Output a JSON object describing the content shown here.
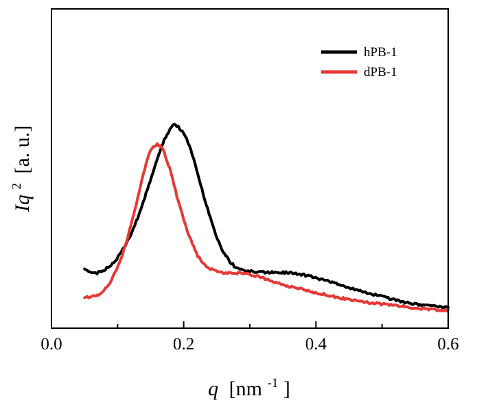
{
  "chart_data": {
    "type": "line",
    "title": "",
    "xlabel": {
      "main": "q",
      "unit_prefix": "[nm",
      "exponent": "-1",
      "unit_suffix": "]"
    },
    "ylabel": {
      "main": "Iq",
      "exponent": "2",
      "unit": "[a. u.]"
    },
    "xlim": [
      0.0,
      0.6
    ],
    "ylim": [
      0,
      1
    ],
    "x_ticks": [
      0.0,
      0.1,
      0.2,
      0.3,
      0.4,
      0.5,
      0.6
    ],
    "x_tick_labels": [
      "0.0",
      "0.2",
      "0.4",
      "0.6"
    ],
    "x_tick_label_values": [
      0.0,
      0.2,
      0.4,
      0.6
    ],
    "y_ticks_shown": false,
    "legend_position": "top-right",
    "series": [
      {
        "name": "hPB-1",
        "color": "#000000",
        "points": [
          [
            0.05,
            0.175
          ],
          [
            0.06,
            0.158
          ],
          [
            0.07,
            0.158
          ],
          [
            0.08,
            0.168
          ],
          [
            0.09,
            0.185
          ],
          [
            0.1,
            0.21
          ],
          [
            0.11,
            0.245
          ],
          [
            0.12,
            0.29
          ],
          [
            0.13,
            0.345
          ],
          [
            0.14,
            0.41
          ],
          [
            0.15,
            0.48
          ],
          [
            0.16,
            0.55
          ],
          [
            0.17,
            0.615
          ],
          [
            0.18,
            0.655
          ],
          [
            0.185,
            0.668
          ],
          [
            0.19,
            0.665
          ],
          [
            0.2,
            0.64
          ],
          [
            0.21,
            0.59
          ],
          [
            0.22,
            0.51
          ],
          [
            0.23,
            0.425
          ],
          [
            0.24,
            0.35
          ],
          [
            0.25,
            0.28
          ],
          [
            0.26,
            0.23
          ],
          [
            0.27,
            0.195
          ],
          [
            0.28,
            0.175
          ],
          [
            0.29,
            0.165
          ],
          [
            0.3,
            0.162
          ],
          [
            0.32,
            0.16
          ],
          [
            0.34,
            0.16
          ],
          [
            0.36,
            0.158
          ],
          [
            0.38,
            0.152
          ],
          [
            0.4,
            0.14
          ],
          [
            0.42,
            0.127
          ],
          [
            0.44,
            0.113
          ],
          [
            0.46,
            0.1
          ],
          [
            0.48,
            0.088
          ],
          [
            0.5,
            0.076
          ],
          [
            0.52,
            0.064
          ],
          [
            0.54,
            0.054
          ],
          [
            0.56,
            0.047
          ],
          [
            0.58,
            0.042
          ],
          [
            0.6,
            0.038
          ]
        ]
      },
      {
        "name": "dPB-1",
        "color": "#e53935",
        "points": [
          [
            0.05,
            0.072
          ],
          [
            0.06,
            0.075
          ],
          [
            0.07,
            0.082
          ],
          [
            0.08,
            0.098
          ],
          [
            0.09,
            0.13
          ],
          [
            0.1,
            0.175
          ],
          [
            0.11,
            0.24
          ],
          [
            0.12,
            0.32
          ],
          [
            0.13,
            0.41
          ],
          [
            0.14,
            0.51
          ],
          [
            0.15,
            0.585
          ],
          [
            0.16,
            0.6
          ],
          [
            0.165,
            0.595
          ],
          [
            0.17,
            0.575
          ],
          [
            0.18,
            0.51
          ],
          [
            0.19,
            0.42
          ],
          [
            0.2,
            0.34
          ],
          [
            0.21,
            0.275
          ],
          [
            0.22,
            0.22
          ],
          [
            0.23,
            0.19
          ],
          [
            0.24,
            0.172
          ],
          [
            0.25,
            0.163
          ],
          [
            0.26,
            0.158
          ],
          [
            0.28,
            0.157
          ],
          [
            0.3,
            0.152
          ],
          [
            0.32,
            0.14
          ],
          [
            0.34,
            0.125
          ],
          [
            0.36,
            0.11
          ],
          [
            0.38,
            0.1
          ],
          [
            0.4,
            0.09
          ],
          [
            0.42,
            0.08
          ],
          [
            0.44,
            0.07
          ],
          [
            0.46,
            0.062
          ],
          [
            0.48,
            0.055
          ],
          [
            0.5,
            0.05
          ],
          [
            0.52,
            0.045
          ],
          [
            0.54,
            0.04
          ],
          [
            0.56,
            0.035
          ],
          [
            0.58,
            0.031
          ],
          [
            0.6,
            0.028
          ]
        ]
      }
    ]
  }
}
